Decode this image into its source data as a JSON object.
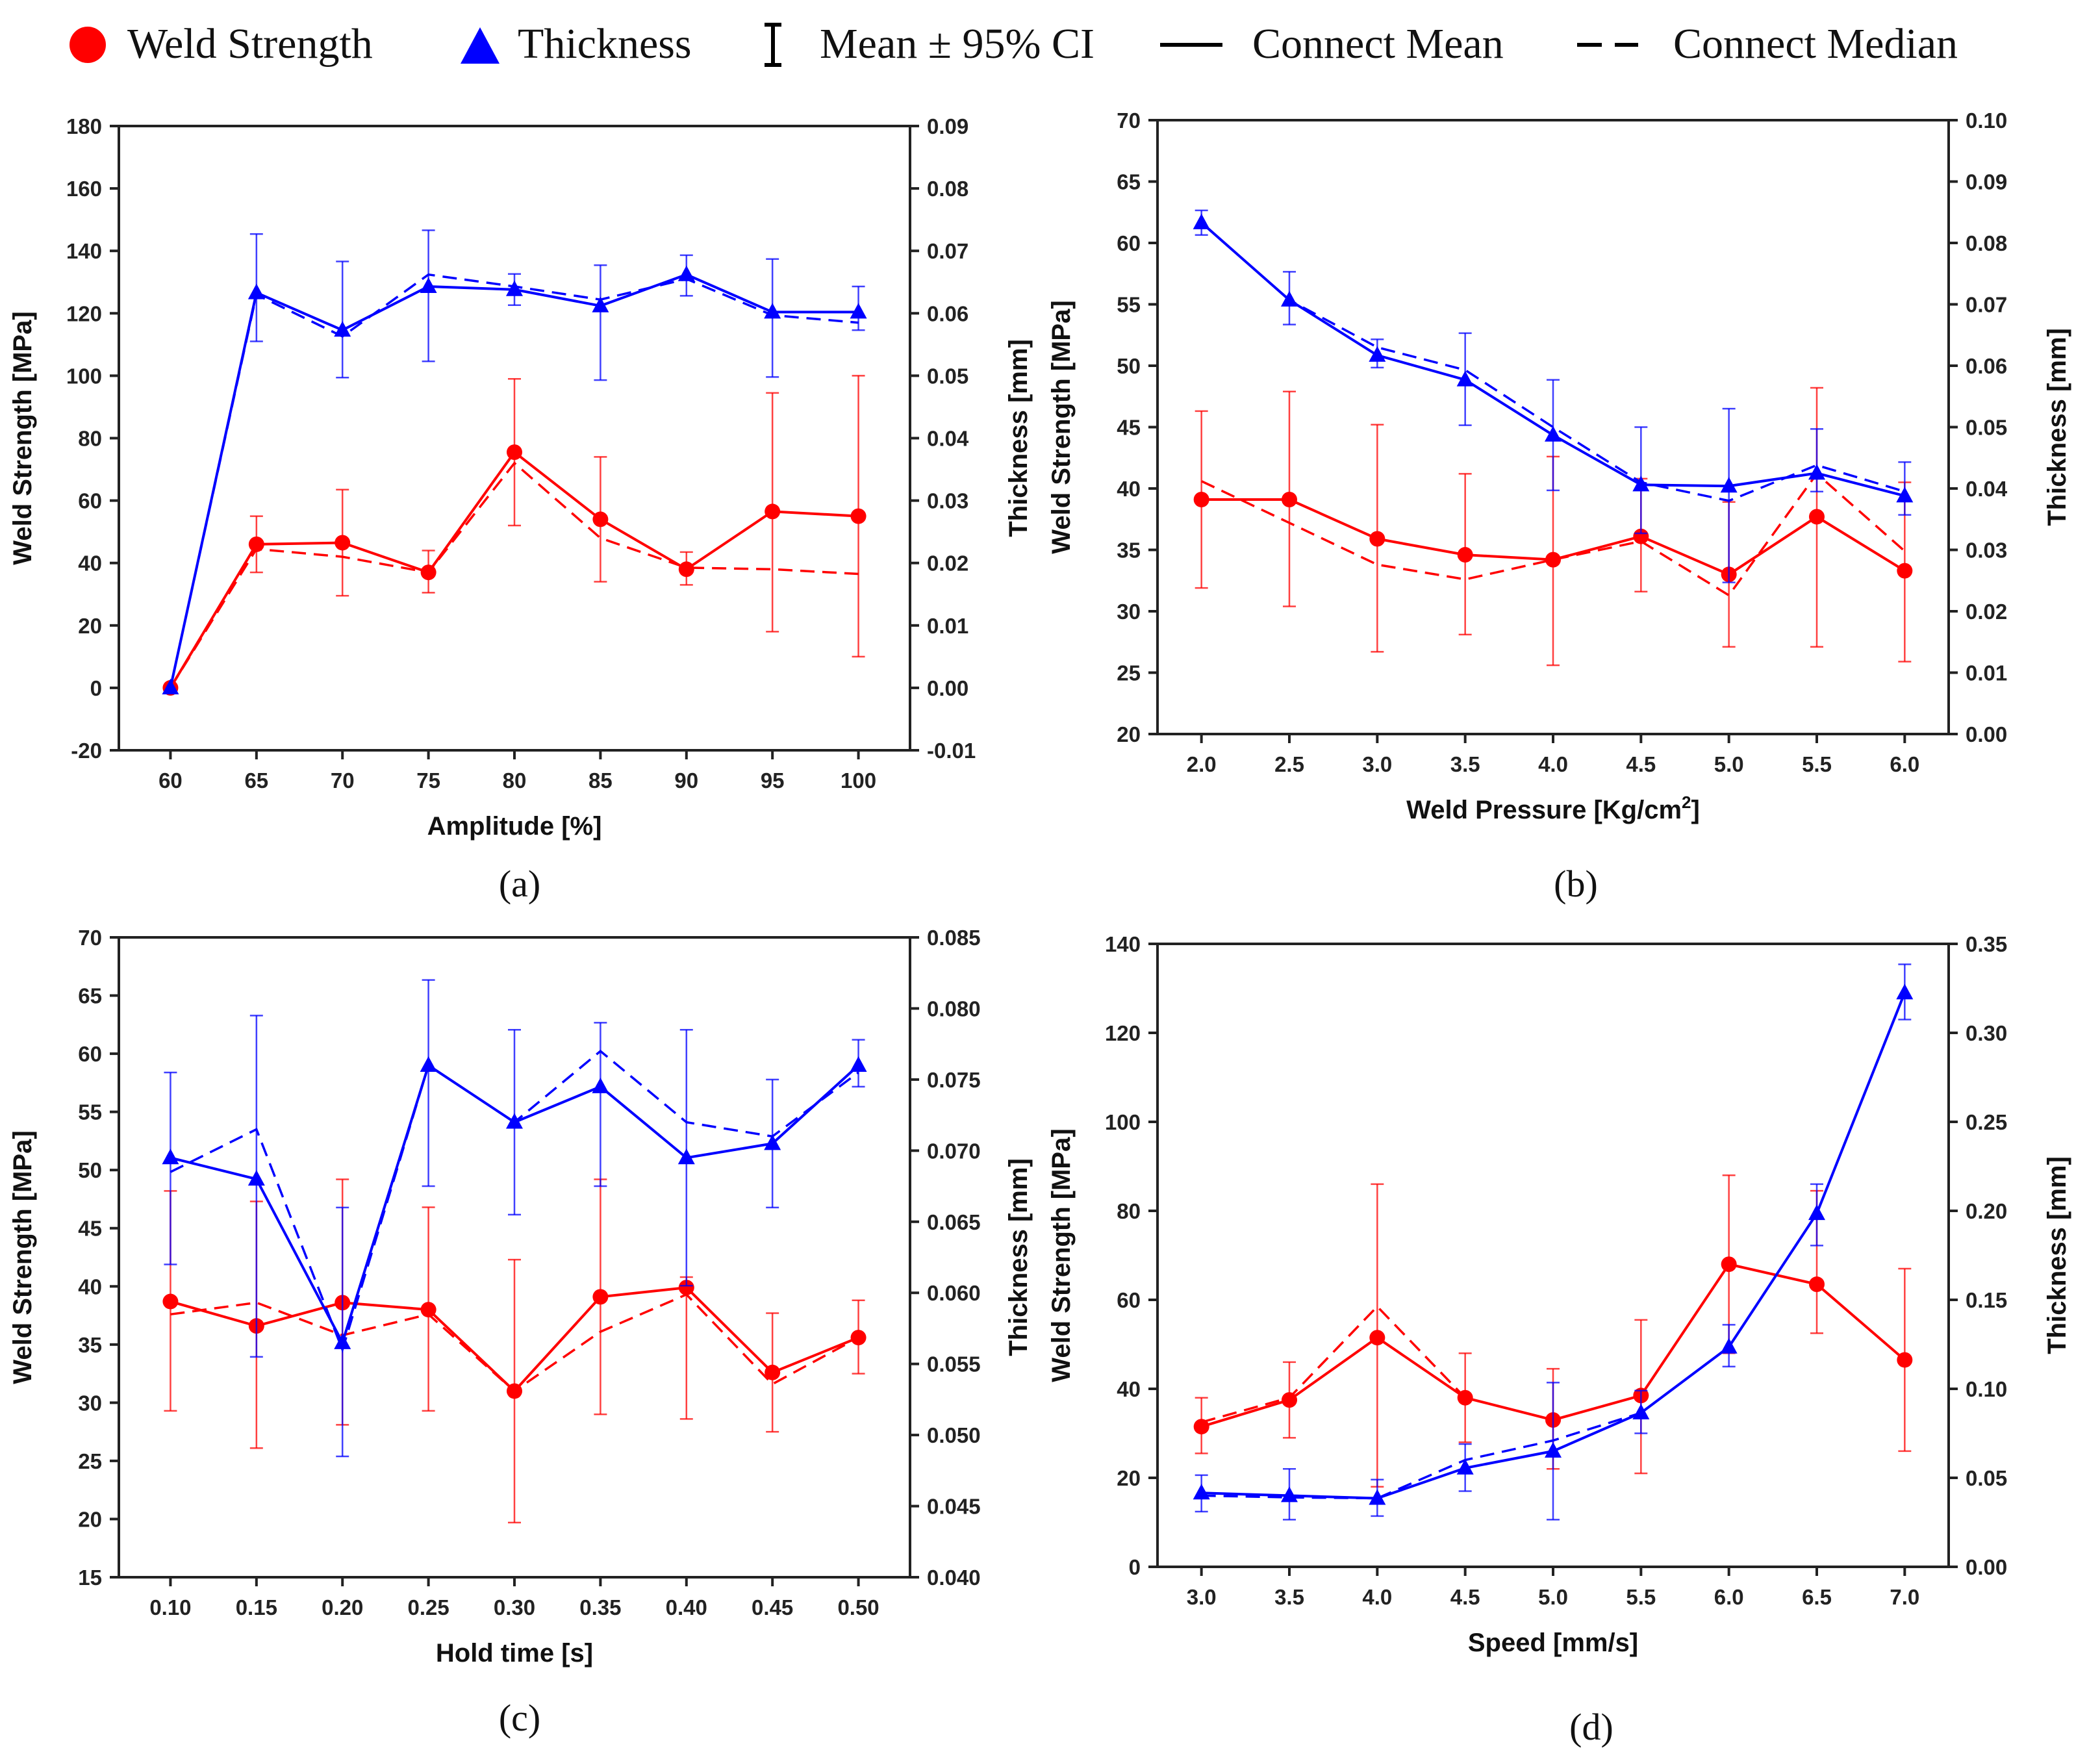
{
  "legend": {
    "weld_strength": "Weld Strength",
    "thickness": "Thickness",
    "mean_ci": "Mean ± 95% CI",
    "connect_mean": "Connect Mean",
    "connect_median": "Connect Median"
  },
  "colors": {
    "strength": "#ff0000",
    "thickness": "#0000ff",
    "axis": "#222222"
  },
  "chart_data": [
    {
      "type": "line",
      "caption": "(a)",
      "xlabel": "Amplitude [%]",
      "ylabel": "Weld Strength [MPa]",
      "y2label": "Thickness [mm]",
      "xlim": [
        57,
        103
      ],
      "ylim": [
        -20,
        180
      ],
      "y2lim": [
        -0.01,
        0.09
      ],
      "x_ticks": [
        "60",
        "65",
        "70",
        "75",
        "80",
        "85",
        "90",
        "95",
        "100"
      ],
      "y_ticks": [
        "-20",
        "0",
        "20",
        "40",
        "60",
        "80",
        "100",
        "120",
        "140",
        "160",
        "180"
      ],
      "y2_ticks": [
        "-0.01",
        "0.00",
        "0.01",
        "0.02",
        "0.03",
        "0.04",
        "0.05",
        "0.06",
        "0.07",
        "0.08",
        "0.09"
      ],
      "x": [
        60,
        65,
        70,
        75,
        80,
        85,
        90,
        95,
        100
      ],
      "series": [
        {
          "name": "Weld Strength",
          "axis": "left",
          "marker": "circle",
          "mean": [
            0,
            46,
            46.5,
            37,
            75.5,
            54,
            38,
            56.5,
            55
          ],
          "median": [
            0,
            44.5,
            42,
            37,
            72,
            48,
            38.5,
            38,
            36.5
          ],
          "ci_low": [
            0,
            37,
            29.5,
            30.5,
            52,
            34,
            33,
            18,
            10
          ],
          "ci_high": [
            0,
            55,
            63.5,
            44,
            99,
            74,
            43.5,
            94.5,
            100
          ]
        },
        {
          "name": "Thickness",
          "axis": "right",
          "marker": "triangle",
          "mean": [
            0.0,
            0.0633,
            0.0573,
            0.0643,
            0.0638,
            0.0612,
            0.0662,
            0.0602,
            0.0602
          ],
          "median": [
            0.0,
            0.063,
            0.0563,
            0.0662,
            0.0643,
            0.0622,
            0.0655,
            0.0597,
            0.0585
          ],
          "ci_low": [
            0.0,
            0.0555,
            0.0497,
            0.0523,
            0.0613,
            0.0493,
            0.0628,
            0.0498,
            0.0573
          ],
          "ci_high": [
            0.0,
            0.0727,
            0.0683,
            0.0733,
            0.0663,
            0.0677,
            0.0693,
            0.0687,
            0.0643
          ]
        }
      ]
    },
    {
      "type": "line",
      "caption": "(b)",
      "xlabel": "Weld Pressure [Kg/cm",
      "xlabel_sup": "2",
      "xlabel_end": "]",
      "ylabel": "Weld Strength [MPa]",
      "y2label": "Thickness [mm]",
      "xlim": [
        1.75,
        6.25
      ],
      "ylim": [
        20,
        70
      ],
      "y2lim": [
        0.0,
        0.1
      ],
      "x_ticks": [
        "2.0",
        "2.5",
        "3.0",
        "3.5",
        "4.0",
        "4.5",
        "5.0",
        "5.5",
        "6.0"
      ],
      "y_ticks": [
        "20",
        "25",
        "30",
        "35",
        "40",
        "45",
        "50",
        "55",
        "60",
        "65",
        "70"
      ],
      "y2_ticks": [
        "0.00",
        "0.01",
        "0.02",
        "0.03",
        "0.04",
        "0.05",
        "0.06",
        "0.07",
        "0.08",
        "0.09",
        "0.10"
      ],
      "x": [
        2.0,
        2.5,
        3.0,
        3.5,
        4.0,
        4.5,
        5.0,
        5.5,
        6.0
      ],
      "series": [
        {
          "name": "Weld Strength",
          "axis": "left",
          "marker": "circle",
          "mean": [
            39.1,
            39.1,
            35.9,
            34.6,
            34.2,
            36.1,
            33.0,
            37.7,
            33.3
          ],
          "median": [
            40.6,
            37.2,
            33.8,
            32.6,
            34.2,
            35.7,
            31.3,
            41.2,
            34.9
          ],
          "ci_low": [
            31.9,
            30.4,
            26.7,
            28.1,
            25.6,
            31.6,
            27.1,
            27.1,
            25.9
          ],
          "ci_high": [
            46.3,
            47.9,
            45.2,
            41.2,
            42.6,
            40.8,
            38.9,
            48.2,
            40.5
          ]
        },
        {
          "name": "Thickness",
          "axis": "right",
          "marker": "triangle",
          "mean": [
            0.0833,
            0.0707,
            0.0617,
            0.0577,
            0.0487,
            0.0406,
            0.0404,
            0.0425,
            0.0388
          ],
          "median": [
            0.0833,
            0.0707,
            0.063,
            0.0593,
            0.05,
            0.041,
            0.038,
            0.0438,
            0.0395
          ],
          "ci_low": [
            0.0813,
            0.0667,
            0.0597,
            0.0503,
            0.0397,
            0.0327,
            0.0247,
            0.0395,
            0.0357
          ],
          "ci_high": [
            0.0853,
            0.0753,
            0.0643,
            0.0653,
            0.0577,
            0.05,
            0.053,
            0.0497,
            0.0443
          ]
        }
      ]
    },
    {
      "type": "line",
      "caption": "(c)",
      "xlabel": "Hold time [s]",
      "ylabel": "Weld Strength [MPa]",
      "y2label": "Thickness [mm]",
      "xlim": [
        0.07,
        0.53
      ],
      "ylim": [
        15,
        70
      ],
      "y2lim": [
        0.04,
        0.085
      ],
      "x_ticks": [
        "0.10",
        "0.15",
        "0.20",
        "0.25",
        "0.30",
        "0.35",
        "0.40",
        "0.45",
        "0.50"
      ],
      "y_ticks": [
        "15",
        "20",
        "25",
        "30",
        "35",
        "40",
        "45",
        "50",
        "55",
        "60",
        "65",
        "70"
      ],
      "y2_ticks": [
        "0.040",
        "0.045",
        "0.050",
        "0.055",
        "0.060",
        "0.065",
        "0.070",
        "0.075",
        "0.080",
        "0.085"
      ],
      "x": [
        0.1,
        0.15,
        0.2,
        0.25,
        0.3,
        0.35,
        0.4,
        0.45,
        0.5
      ],
      "series": [
        {
          "name": "Weld Strength",
          "axis": "left",
          "marker": "circle",
          "mean": [
            38.7,
            36.6,
            38.6,
            38.0,
            31.0,
            39.1,
            39.9,
            32.6,
            35.6
          ],
          "median": [
            37.6,
            38.6,
            35.8,
            37.6,
            31.0,
            36.1,
            39.3,
            31.6,
            35.6
          ],
          "ci_low": [
            29.3,
            26.1,
            28.1,
            29.3,
            19.7,
            29.0,
            28.6,
            27.5,
            32.5
          ],
          "ci_high": [
            48.2,
            47.3,
            49.2,
            46.8,
            42.3,
            49.2,
            40.8,
            37.7,
            38.8
          ]
        },
        {
          "name": "Thickness",
          "axis": "right",
          "marker": "triangle",
          "mean": [
            0.0695,
            0.068,
            0.0565,
            0.076,
            0.072,
            0.0745,
            0.0695,
            0.0705,
            0.076
          ],
          "median": [
            0.0685,
            0.0715,
            0.056,
            0.076,
            0.072,
            0.077,
            0.072,
            0.071,
            0.0755
          ],
          "ci_low": [
            0.062,
            0.0555,
            0.0485,
            0.0675,
            0.0655,
            0.0675,
            0.0605,
            0.066,
            0.0745
          ],
          "ci_high": [
            0.0755,
            0.0795,
            0.066,
            0.082,
            0.0785,
            0.079,
            0.0785,
            0.075,
            0.0778
          ]
        }
      ]
    },
    {
      "type": "line",
      "caption": "(d)",
      "xlabel": "Speed [mm/s]",
      "ylabel": "Weld Strength [MPa]",
      "y2label": "Thickness [mm]",
      "xlim": [
        2.75,
        7.25
      ],
      "ylim": [
        0,
        140
      ],
      "y2lim": [
        0.0,
        0.35
      ],
      "x_ticks": [
        "3.0",
        "3.5",
        "4.0",
        "4.5",
        "5.0",
        "5.5",
        "6.0",
        "6.5",
        "7.0"
      ],
      "y_ticks": [
        "0",
        "20",
        "40",
        "60",
        "80",
        "100",
        "120",
        "140"
      ],
      "y2_ticks": [
        "0.00",
        "0.05",
        "0.10",
        "0.15",
        "0.20",
        "0.25",
        "0.30",
        "0.35"
      ],
      "x": [
        3.0,
        3.5,
        4.0,
        4.5,
        5.0,
        5.5,
        6.0,
        6.5,
        7.0
      ],
      "series": [
        {
          "name": "Weld Strength",
          "axis": "left",
          "marker": "circle",
          "mean": [
            31.5,
            37.5,
            51.5,
            38.0,
            33.0,
            38.5,
            68.0,
            63.5,
            46.5
          ],
          "median": [
            32.5,
            38.0,
            58.5,
            38.0,
            33.0,
            38.5,
            68.0,
            63.5,
            46.5
          ],
          "ci_low": [
            25.5,
            29.0,
            18.0,
            28.0,
            22.0,
            21.0,
            48.0,
            52.5,
            26.0
          ],
          "ci_high": [
            38.0,
            46.0,
            86.0,
            48.0,
            44.5,
            55.5,
            88.0,
            84.5,
            67.0
          ]
        },
        {
          "name": "Thickness",
          "axis": "right",
          "marker": "triangle",
          "mean": [
            0.0415,
            0.04,
            0.0385,
            0.0555,
            0.065,
            0.0865,
            0.1235,
            0.1985,
            0.3225
          ],
          "median": [
            0.04,
            0.039,
            0.0385,
            0.06,
            0.071,
            0.0865,
            0.1235,
            0.1985,
            0.3225
          ],
          "ci_low": [
            0.031,
            0.0265,
            0.0285,
            0.0425,
            0.0265,
            0.075,
            0.1125,
            0.1805,
            0.3075
          ],
          "ci_high": [
            0.0515,
            0.055,
            0.049,
            0.069,
            0.1035,
            0.099,
            0.136,
            0.215,
            0.3385
          ]
        }
      ]
    }
  ]
}
